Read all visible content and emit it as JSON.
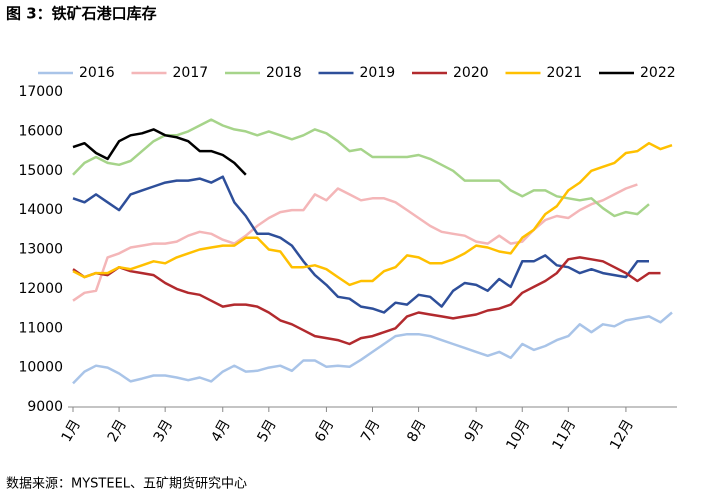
{
  "chart_data": {
    "type": "line",
    "title": "图 3：铁矿石港口库存",
    "source": "数据来源：MYSTEEL、五矿期货研究中心",
    "categories": [
      "1月",
      null,
      null,
      null,
      "2月",
      null,
      null,
      null,
      "3月",
      null,
      null,
      null,
      null,
      "4月",
      null,
      null,
      null,
      "5月",
      null,
      null,
      null,
      null,
      "6月",
      null,
      null,
      null,
      "7月",
      null,
      null,
      null,
      "8月",
      null,
      null,
      null,
      null,
      "9月",
      null,
      null,
      null,
      "10月",
      null,
      null,
      null,
      "11月",
      null,
      null,
      null,
      null,
      "12月",
      null,
      null,
      null,
      null
    ],
    "ylim": [
      9000,
      17000
    ],
    "yticks": [
      9000,
      10000,
      11000,
      12000,
      13000,
      14000,
      15000,
      16000,
      17000
    ],
    "grid": false,
    "legend": "top",
    "series": [
      {
        "name": "2016",
        "color": "#a9c4e8",
        "values": [
          9600,
          9900,
          10050,
          10000,
          9850,
          9650,
          9720,
          9800,
          9800,
          9750,
          9680,
          9750,
          9650,
          9900,
          10050,
          9900,
          9920,
          10000,
          10050,
          9920,
          10180,
          10180,
          10020,
          10050,
          10020,
          10200,
          10400,
          10600,
          10800,
          10850,
          10850,
          10800,
          10700,
          10600,
          10500,
          10400,
          10300,
          10400,
          10250,
          10600,
          10450,
          10550,
          10700,
          10800,
          11100,
          10900,
          11100,
          11050,
          11200,
          11250,
          11300,
          11150,
          11400
        ]
      },
      {
        "name": "2017",
        "color": "#f4b6b8",
        "values": [
          11700,
          11900,
          11950,
          12800,
          12900,
          13050,
          13100,
          13150,
          13150,
          13200,
          13350,
          13450,
          13400,
          13250,
          13150,
          13350,
          13600,
          13800,
          13950,
          14000,
          14000,
          14400,
          14250,
          14550,
          14400,
          14250,
          14300,
          14300,
          14200,
          14000,
          13800,
          13600,
          13450,
          13400,
          13350,
          13200,
          13150,
          13350,
          13150,
          13200,
          13500,
          13750,
          13850,
          13800,
          14000,
          14150,
          14250,
          14400,
          14550,
          14650,
          null,
          null,
          null
        ]
      },
      {
        "name": "2018",
        "color": "#a6d48a",
        "values": [
          14900,
          15200,
          15350,
          15200,
          15150,
          15250,
          15500,
          15750,
          15900,
          15900,
          16000,
          16150,
          16300,
          16150,
          16050,
          16000,
          15900,
          16000,
          15900,
          15800,
          15900,
          16050,
          15950,
          15750,
          15500,
          15550,
          15350,
          15350,
          15350,
          15350,
          15400,
          15300,
          15150,
          15000,
          14750,
          14750,
          14750,
          14750,
          14500,
          14350,
          14500,
          14500,
          14350,
          14300,
          14250,
          14300,
          14050,
          13850,
          13950,
          13900,
          14150,
          null,
          null
        ]
      },
      {
        "name": "2019",
        "color": "#2e4f9a",
        "values": [
          14300,
          14200,
          14400,
          14200,
          14000,
          14400,
          14500,
          14600,
          14700,
          14750,
          14750,
          14800,
          14700,
          14850,
          14200,
          13850,
          13400,
          13400,
          13300,
          13100,
          12700,
          12350,
          12100,
          11800,
          11750,
          11550,
          11500,
          11400,
          11650,
          11600,
          11850,
          11800,
          11550,
          11950,
          12150,
          12100,
          11950,
          12250,
          12050,
          12700,
          12700,
          12850,
          12600,
          12550,
          12400,
          12500,
          12400,
          12350,
          12300,
          12700,
          12700,
          null,
          null
        ]
      },
      {
        "name": "2020",
        "color": "#b22a2e",
        "values": [
          12500,
          12300,
          12400,
          12350,
          12550,
          12450,
          12400,
          12350,
          12150,
          12000,
          11900,
          11850,
          11700,
          11550,
          11600,
          11600,
          11550,
          11400,
          11200,
          11100,
          10950,
          10800,
          10750,
          10700,
          10600,
          10750,
          10800,
          10900,
          11000,
          11300,
          11400,
          11350,
          11300,
          11250,
          11300,
          11350,
          11450,
          11500,
          11600,
          11900,
          12050,
          12200,
          12400,
          12750,
          12800,
          12750,
          12700,
          12550,
          12400,
          12200,
          12400,
          12400,
          null
        ]
      },
      {
        "name": "2021",
        "color": "#ffc000",
        "values": [
          12450,
          12300,
          12400,
          12400,
          12550,
          12500,
          12600,
          12700,
          12650,
          12800,
          12900,
          13000,
          13050,
          13100,
          13100,
          13300,
          13300,
          13000,
          12950,
          12550,
          12550,
          12600,
          12500,
          12300,
          12100,
          12200,
          12200,
          12450,
          12550,
          12850,
          12800,
          12650,
          12650,
          12750,
          12900,
          13100,
          13050,
          12950,
          12900,
          13300,
          13500,
          13900,
          14100,
          14500,
          14700,
          15000,
          15100,
          15200,
          15450,
          15500,
          15700,
          15550,
          15650
        ]
      },
      {
        "name": "2022",
        "color": "#000000",
        "values": [
          15600,
          15700,
          15450,
          15300,
          15750,
          15900,
          15950,
          16050,
          15900,
          15850,
          15750,
          15500,
          15500,
          15400,
          15200,
          14900,
          null,
          null,
          null,
          null,
          null,
          null,
          null,
          null,
          null,
          null,
          null,
          null,
          null,
          null,
          null,
          null,
          null,
          null,
          null,
          null,
          null,
          null,
          null,
          null,
          null,
          null,
          null,
          null,
          null,
          null,
          null,
          null,
          null,
          null,
          null,
          null,
          null
        ]
      }
    ]
  }
}
